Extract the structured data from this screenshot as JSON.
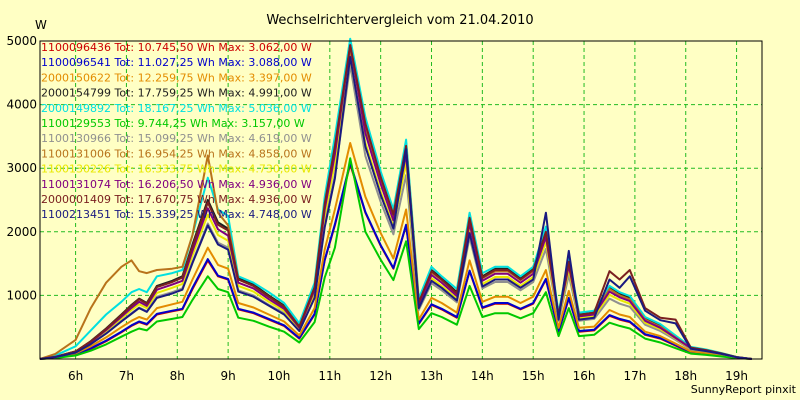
{
  "title": "Wechselrichtervergleich vom 21.04.2010",
  "footer": "SunnyReport pinxit",
  "chart_data": {
    "type": "line",
    "title": "Wechselrichtervergleich vom 21.04.2010",
    "ylabel": "W",
    "xlabel": "",
    "ylim": [
      0,
      5000
    ],
    "xlim": [
      5.3,
      19.5
    ],
    "grid": true,
    "legend_position": "top-left",
    "y_ticks": [
      {
        "value": 1000,
        "label": "1000"
      },
      {
        "value": 2000,
        "label": "2000"
      },
      {
        "value": 3000,
        "label": "3000"
      },
      {
        "value": 4000,
        "label": "4000"
      },
      {
        "value": 5000,
        "label": "5000"
      }
    ],
    "x_ticks": [
      {
        "value": 6,
        "label": "6h"
      },
      {
        "value": 7,
        "label": "7h"
      },
      {
        "value": 8,
        "label": "8h"
      },
      {
        "value": 9,
        "label": "9h"
      },
      {
        "value": 10,
        "label": "10h"
      },
      {
        "value": 11,
        "label": "11h"
      },
      {
        "value": 12,
        "label": "12h"
      },
      {
        "value": 13,
        "label": "13h"
      },
      {
        "value": 14,
        "label": "14h"
      },
      {
        "value": 15,
        "label": "15h"
      },
      {
        "value": 16,
        "label": "16h"
      },
      {
        "value": 17,
        "label": "17h"
      },
      {
        "value": 18,
        "label": "18h"
      },
      {
        "value": 19,
        "label": "19h"
      }
    ],
    "x": [
      5.3,
      5.6,
      6.0,
      6.3,
      6.6,
      6.9,
      7.1,
      7.25,
      7.4,
      7.6,
      7.9,
      8.1,
      8.3,
      8.6,
      8.8,
      9.0,
      9.2,
      9.5,
      9.8,
      10.1,
      10.4,
      10.7,
      10.9,
      11.1,
      11.4,
      11.7,
      12.0,
      12.25,
      12.5,
      12.75,
      13.0,
      13.2,
      13.5,
      13.75,
      14.0,
      14.25,
      14.5,
      14.75,
      15.0,
      15.25,
      15.5,
      15.7,
      15.9,
      16.2,
      16.5,
      16.7,
      16.9,
      17.2,
      17.5,
      17.8,
      18.1,
      18.4,
      18.7,
      19.0,
      19.3
    ],
    "series": [
      {
        "name": "1100096436 Tot: 10.745,50 Wh Max: 3.062,00 W",
        "color": "#cc0000",
        "values": [
          0,
          20,
          70,
          160,
          280,
          420,
          520,
          580,
          540,
          700,
          750,
          780,
          1100,
          1550,
          1300,
          1250,
          780,
          720,
          620,
          520,
          320,
          700,
          1550,
          2100,
          3062,
          2300,
          1780,
          1420,
          2100,
          550,
          850,
          780,
          650,
          1380,
          800,
          870,
          870,
          780,
          870,
          1250,
          430,
          950,
          430,
          450,
          680,
          620,
          580,
          380,
          320,
          210,
          100,
          80,
          50,
          20,
          0
        ]
      },
      {
        "name": "1100096541 Tot: 11.027,25 Wh Max: 3.088,00 W",
        "color": "#0000cc",
        "values": [
          0,
          20,
          75,
          170,
          290,
          430,
          530,
          590,
          550,
          710,
          760,
          790,
          1120,
          1570,
          1310,
          1260,
          790,
          730,
          630,
          530,
          330,
          710,
          1560,
          2120,
          3088,
          2310,
          1790,
          1430,
          2110,
          560,
          860,
          790,
          660,
          1390,
          810,
          880,
          880,
          790,
          880,
          1260,
          440,
          960,
          440,
          460,
          690,
          630,
          590,
          390,
          330,
          220,
          110,
          85,
          55,
          20,
          0
        ]
      },
      {
        "name": "2000150622 Tot: 12.259,75 Wh Max: 3.397,00 W",
        "color": "#e38c00",
        "values": [
          0,
          25,
          90,
          200,
          340,
          500,
          600,
          660,
          620,
          800,
          860,
          900,
          1250,
          1750,
          1480,
          1420,
          880,
          810,
          700,
          590,
          370,
          800,
          1720,
          2350,
          3397,
          2550,
          1980,
          1580,
          2350,
          620,
          960,
          880,
          730,
          1550,
          900,
          980,
          980,
          880,
          980,
          1400,
          490,
          1070,
          490,
          510,
          770,
          700,
          660,
          430,
          360,
          240,
          120,
          95,
          60,
          22,
          0
        ]
      },
      {
        "name": "2000154799 Tot: 17.759,25 Wh Max: 4.991,00 W",
        "color": "#202020",
        "values": [
          0,
          35,
          120,
          280,
          480,
          700,
          850,
          950,
          880,
          1150,
          1230,
          1300,
          1800,
          2500,
          2150,
          2050,
          1270,
          1170,
          1000,
          840,
          520,
          1150,
          2480,
          3400,
          4991,
          3750,
          2900,
          2300,
          3400,
          900,
          1400,
          1270,
          1050,
          2250,
          1300,
          1420,
          1420,
          1270,
          1420,
          2030,
          700,
          1550,
          700,
          740,
          1120,
          1020,
          960,
          630,
          520,
          350,
          180,
          140,
          90,
          30,
          0
        ]
      },
      {
        "name": "2000149892 Tot: 18.167,25 Wh Max: 5.036,00 W",
        "color": "#00e0e0",
        "values": [
          0,
          55,
          200,
          450,
          700,
          900,
          1050,
          1100,
          1050,
          1300,
          1350,
          1400,
          1950,
          2850,
          2350,
          2250,
          1300,
          1200,
          1050,
          880,
          560,
          1200,
          2550,
          3500,
          5036,
          3800,
          2950,
          2350,
          3450,
          950,
          1450,
          1300,
          1100,
          2300,
          1350,
          1450,
          1450,
          1300,
          1450,
          2080,
          730,
          1580,
          730,
          760,
          1150,
          1050,
          990,
          660,
          550,
          370,
          190,
          150,
          95,
          32,
          0
        ]
      },
      {
        "name": "1100129553 Tot: 9.744,25 Wh Max: 3.157,00 W",
        "color": "#00c800",
        "values": [
          0,
          15,
          55,
          130,
          230,
          350,
          430,
          480,
          450,
          590,
          630,
          660,
          930,
          1300,
          1100,
          1050,
          650,
          600,
          510,
          430,
          260,
          580,
          1280,
          1750,
          3157,
          2000,
          1560,
          1240,
          1850,
          470,
          720,
          660,
          540,
          1150,
          660,
          720,
          720,
          640,
          720,
          1050,
          360,
          800,
          360,
          380,
          570,
          520,
          480,
          320,
          260,
          170,
          85,
          65,
          40,
          15,
          0
        ]
      },
      {
        "name": "1100130966 Tot: 15.099,25 Wh Max: 4.619,00 W",
        "color": "#909090",
        "values": [
          0,
          30,
          105,
          240,
          410,
          600,
          720,
          810,
          750,
          980,
          1050,
          1110,
          1530,
          2130,
          1830,
          1750,
          1080,
          1000,
          850,
          720,
          440,
          980,
          2110,
          2890,
          4619,
          3190,
          2470,
          1960,
          2890,
          770,
          1190,
          1080,
          890,
          1910,
          1110,
          1210,
          1210,
          1080,
          1210,
          1730,
          600,
          1320,
          600,
          630,
          950,
          870,
          820,
          540,
          440,
          300,
          150,
          120,
          75,
          26,
          0
        ]
      },
      {
        "name": "1100131006 Tot: 16.954,25 Wh Max: 4.858,00 W",
        "color": "#b8731b",
        "values": [
          0,
          80,
          300,
          800,
          1200,
          1450,
          1550,
          1380,
          1350,
          1400,
          1420,
          1450,
          1950,
          3200,
          2300,
          2100,
          1250,
          1150,
          980,
          820,
          500,
          1120,
          2400,
          3300,
          4858,
          3650,
          2820,
          2250,
          3300,
          880,
          1360,
          1240,
          1020,
          2180,
          1270,
          1380,
          1380,
          1240,
          1380,
          1960,
          690,
          1500,
          690,
          720,
          1100,
          1000,
          940,
          620,
          510,
          340,
          175,
          135,
          85,
          30,
          0
        ]
      },
      {
        "name": "1100130226 Tot: 16.333,75 Wh Max: 4.730,00 W",
        "color": "#e8e800",
        "values": [
          0,
          32,
          110,
          255,
          440,
          640,
          770,
          860,
          800,
          1040,
          1120,
          1180,
          1630,
          2270,
          1950,
          1860,
          1150,
          1060,
          900,
          760,
          470,
          1040,
          2250,
          3080,
          4730,
          3400,
          2630,
          2090,
          3080,
          820,
          1270,
          1150,
          950,
          2040,
          1180,
          1290,
          1290,
          1150,
          1290,
          1840,
          640,
          1410,
          640,
          670,
          1010,
          930,
          870,
          570,
          470,
          320,
          160,
          125,
          80,
          28,
          0
        ]
      },
      {
        "name": "1100131074 Tot: 16.206,50 Wh Max: 4.936,00 W",
        "color": "#800080",
        "values": [
          0,
          33,
          115,
          265,
          455,
          665,
          805,
          900,
          835,
          1090,
          1170,
          1230,
          1700,
          2370,
          2040,
          1940,
          1200,
          1110,
          940,
          790,
          490,
          1090,
          2350,
          3220,
          4936,
          3550,
          2750,
          2180,
          3220,
          850,
          1320,
          1200,
          990,
          2130,
          1230,
          1340,
          1340,
          1200,
          1340,
          1920,
          670,
          1470,
          670,
          700,
          1060,
          970,
          910,
          600,
          490,
          330,
          170,
          130,
          85,
          29,
          0
        ]
      },
      {
        "name": "2000001409 Tot: 17.670,75 Wh Max: 4.936,00 W",
        "color": "#7a2020",
        "values": [
          0,
          34,
          118,
          275,
          470,
          690,
          840,
          940,
          870,
          1130,
          1210,
          1280,
          1770,
          2460,
          2110,
          2020,
          1250,
          1150,
          980,
          820,
          510,
          1130,
          2440,
          3350,
          4936,
          3700,
          2860,
          2270,
          3350,
          890,
          1380,
          1250,
          1030,
          2220,
          1280,
          1400,
          1400,
          1250,
          1400,
          2000,
          690,
          1530,
          690,
          730,
          1380,
          1250,
          1400,
          800,
          650,
          620,
          180,
          140,
          90,
          30,
          0
        ]
      },
      {
        "name": "1100213451 Tot: 15.339,25 Wh Max: 4.748,00 W",
        "color": "#1a1a80",
        "values": [
          0,
          30,
          100,
          235,
          400,
          590,
          710,
          800,
          740,
          960,
          1030,
          1090,
          1510,
          2100,
          1800,
          1720,
          1060,
          980,
          840,
          700,
          440,
          960,
          2070,
          2840,
          4748,
          3340,
          2580,
          2050,
          3300,
          800,
          1230,
          1120,
          920,
          1980,
          1140,
          1250,
          1250,
          1120,
          1250,
          2300,
          620,
          1700,
          620,
          650,
          1250,
          1120,
          1300,
          760,
          610,
          560,
          160,
          125,
          80,
          28,
          0
        ]
      }
    ]
  }
}
